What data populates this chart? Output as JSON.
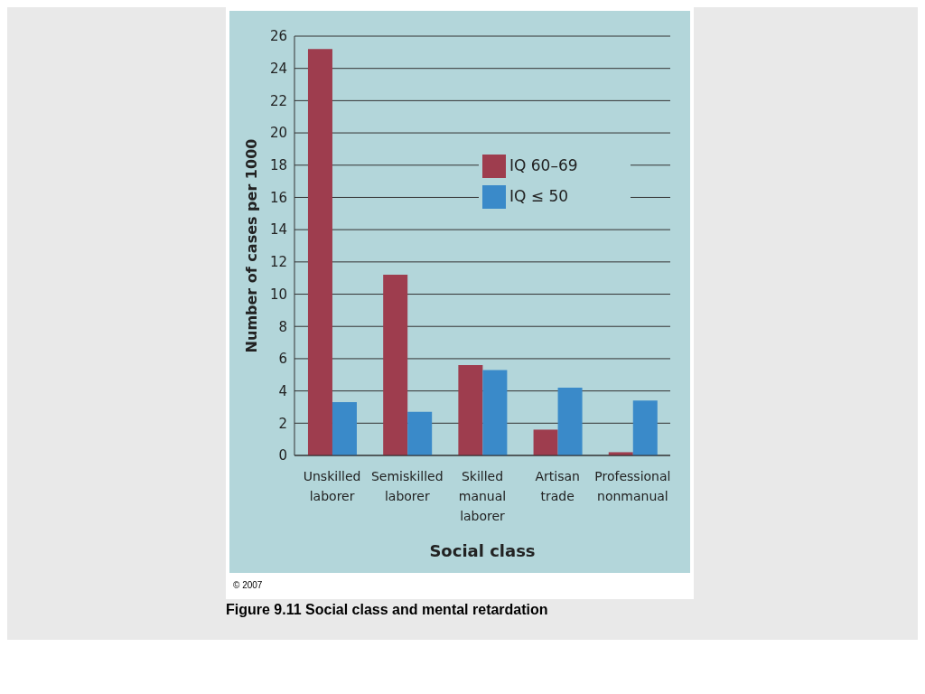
{
  "chart_data": {
    "type": "bar",
    "title": "Figure 9.11  Social class and mental retardation",
    "xlabel": "Social class",
    "ylabel": "Number of cases per 1000",
    "categories": [
      "Unskilled\nlaborer",
      "Semiskilled\nlaborer",
      "Skilled\nmanual\nlaborer",
      "Artisan\ntrade",
      "Professional\nnonmanual"
    ],
    "series": [
      {
        "name": "IQ 60–69",
        "color": "#9e3d4e",
        "values": [
          25.2,
          11.2,
          5.6,
          1.6,
          0.2
        ]
      },
      {
        "name": "IQ ≤ 50",
        "color": "#3a8ac9",
        "values": [
          3.3,
          2.7,
          5.3,
          4.2,
          3.4
        ]
      }
    ],
    "ylim": [
      0,
      26
    ],
    "yticks": [
      0,
      2,
      4,
      6,
      8,
      10,
      12,
      14,
      16,
      18,
      20,
      22,
      24,
      26
    ],
    "grid": "y",
    "legend": "top right",
    "annotations": [
      "© 2007"
    ]
  }
}
